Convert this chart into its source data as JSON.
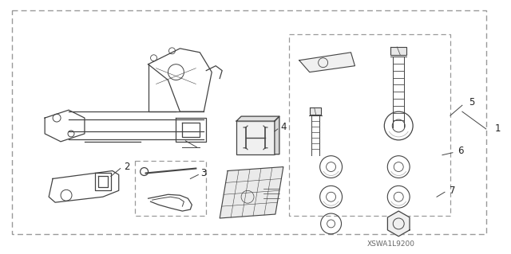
{
  "bg_color": "#ffffff",
  "line_color": "#444444",
  "text_color": "#333333",
  "part_number_text": "XSWA1L9200",
  "figsize": [
    6.4,
    3.19
  ],
  "dpi": 100
}
